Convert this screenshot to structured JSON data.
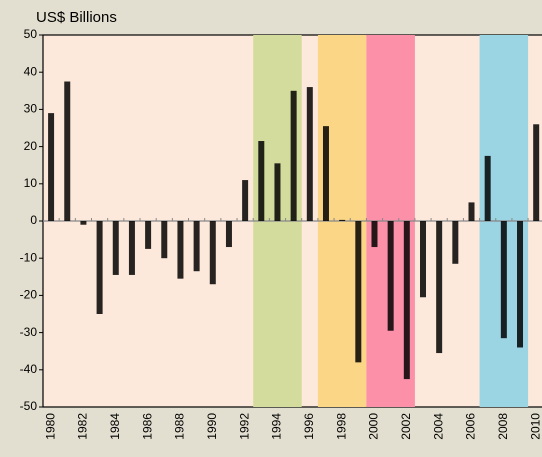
{
  "chart_data": {
    "type": "bar",
    "title": "US$ Billions",
    "categories": [
      "1980",
      null,
      "1982",
      null,
      "1984",
      null,
      "1986",
      null,
      "1988",
      null,
      "1990",
      null,
      "1992",
      null,
      "1994",
      null,
      "1996",
      null,
      "1998",
      null,
      "2000",
      null,
      "2002",
      null,
      "2004",
      null,
      "2006",
      null,
      "2008",
      null,
      "2010"
    ],
    "values": [
      29,
      37.5,
      -1,
      -25,
      -14.5,
      -14.5,
      -7.5,
      -10,
      -15.5,
      -13.5,
      -17,
      -7,
      11,
      21.5,
      15.5,
      35,
      36,
      25.5,
      0.3,
      -38,
      -7,
      -29.5,
      -42.5,
      -20.5,
      -35.5,
      -11.5,
      5,
      17.5,
      -31.5,
      -34,
      26
    ],
    "color": "#000000",
    "ylim": [
      -50,
      50
    ],
    "yticks": [
      -50,
      -40,
      -30,
      -20,
      -10,
      0,
      10,
      20,
      30,
      40,
      50
    ],
    "bands": [
      {
        "from": 12.5,
        "to": 15.5,
        "color": "#d3dc9c"
      },
      {
        "from": 16.5,
        "to": 19.5,
        "color": "#fbd687"
      },
      {
        "from": 19.5,
        "to": 22.5,
        "color": "#fb90a8"
      },
      {
        "from": 26.5,
        "to": 29.5,
        "color": "#9bd5e3"
      }
    ]
  }
}
